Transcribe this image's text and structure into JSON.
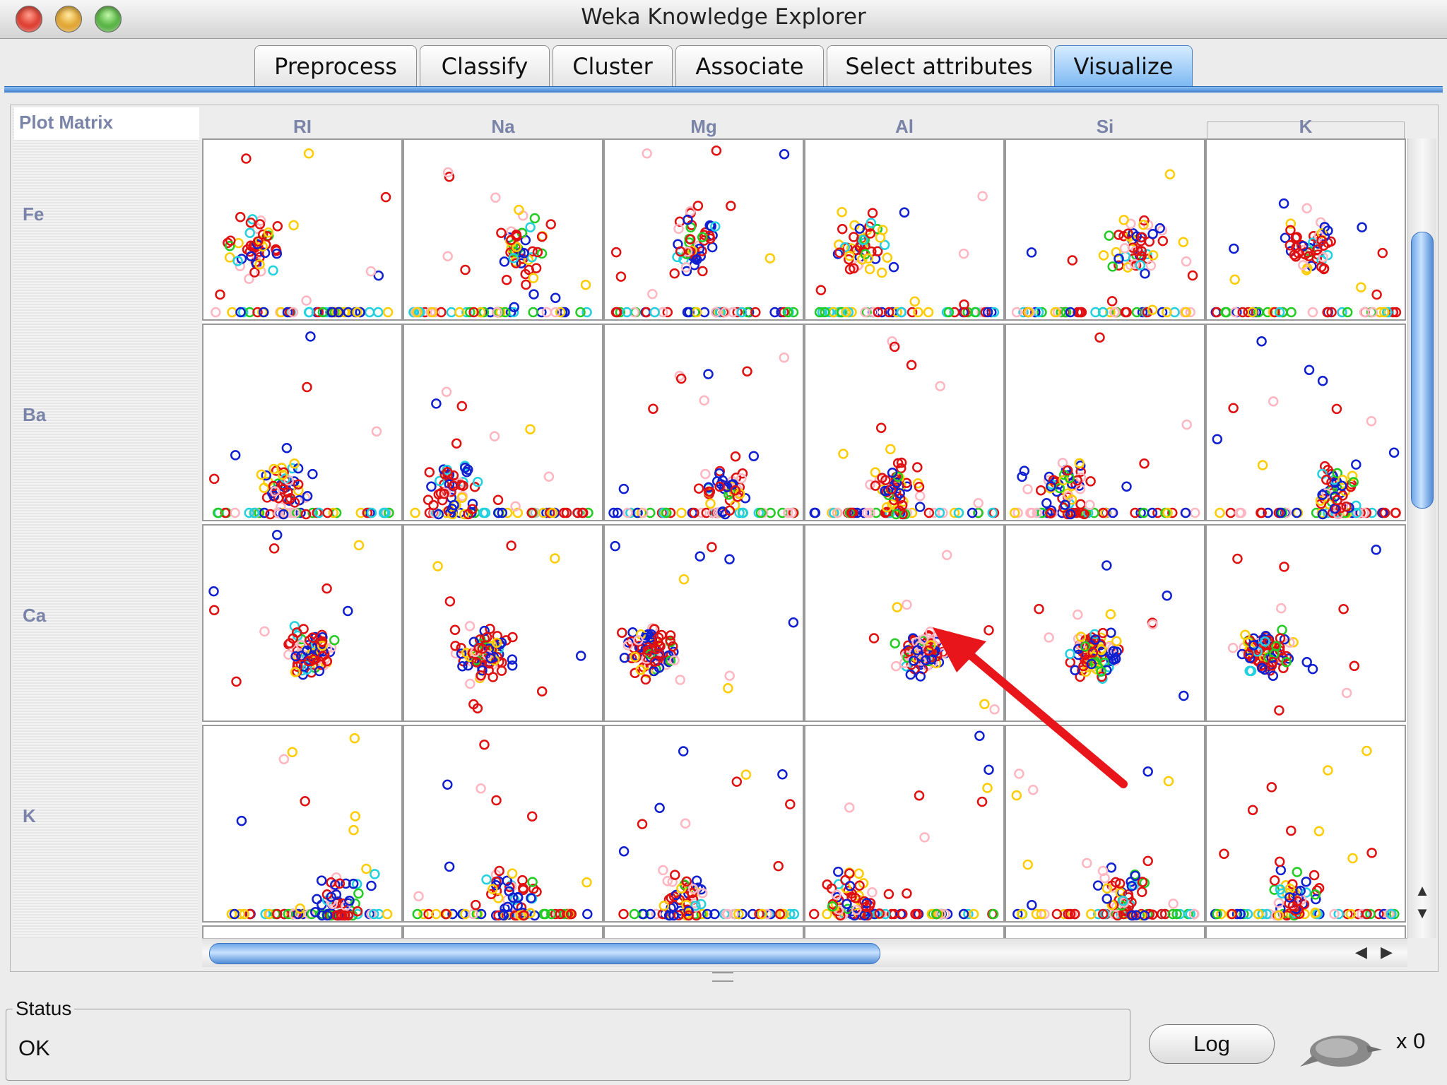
{
  "window": {
    "title": "Weka Knowledge Explorer"
  },
  "tabs": [
    {
      "label": "Preprocess"
    },
    {
      "label": "Classify"
    },
    {
      "label": "Cluster"
    },
    {
      "label": "Associate"
    },
    {
      "label": "Select attributes"
    },
    {
      "label": "Visualize",
      "active": true
    }
  ],
  "plot_matrix": {
    "title": "Plot Matrix",
    "columns": [
      "RI",
      "Na",
      "Mg",
      "Al",
      "Si",
      "K"
    ],
    "rows": [
      "Fe",
      "Ba",
      "Ca",
      "K"
    ]
  },
  "colors": {
    "tab_active": "#7cb8f2",
    "point_palette": [
      "#e01010",
      "#1020d0",
      "#ffcc00",
      "#ffb6c1",
      "#22cc22",
      "#22d0e0"
    ],
    "annotation_arrow": "#e8161a"
  },
  "status": {
    "label": "Status",
    "text": "OK"
  },
  "log_button": {
    "label": "Log"
  },
  "task_count": "x 0"
}
